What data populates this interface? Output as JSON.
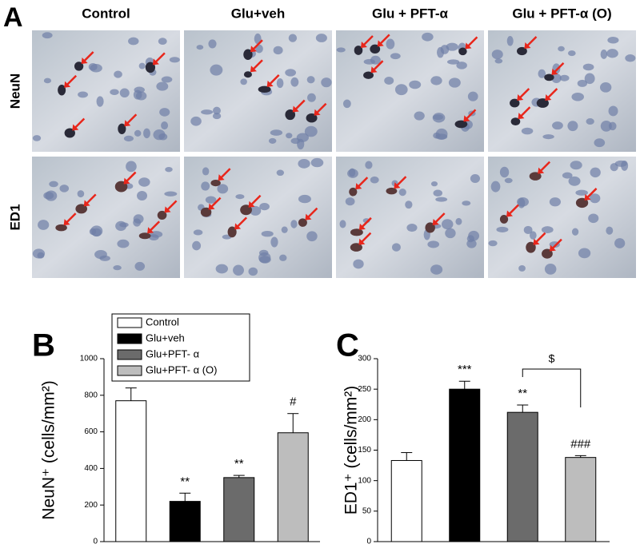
{
  "figure": {
    "panel_labels": [
      "A",
      "B",
      "C"
    ],
    "columns": [
      "Control",
      "Glu+veh",
      "Glu + PFT-α",
      "Glu + PFT-α (O)"
    ],
    "rows": [
      "NeuN",
      "ED1"
    ]
  },
  "chart_data": [
    {
      "type": "bar",
      "ylabel": "NeuN⁺ (cells/mm²)",
      "ylim": [
        0,
        1000
      ],
      "yticks": [
        0,
        200,
        400,
        600,
        800,
        1000
      ],
      "series": [
        {
          "name": "Control",
          "color": "#ffffff",
          "values": [
            770
          ],
          "errors": [
            70
          ]
        },
        {
          "name": "Glu+veh",
          "color": "#000000",
          "values": [
            220
          ],
          "errors": [
            45
          ],
          "labels": [
            "**"
          ]
        },
        {
          "name": "Glu+PFT- α",
          "color": "#6b6b6b",
          "values": [
            350
          ],
          "errors": [
            12
          ],
          "labels": [
            "**"
          ]
        },
        {
          "name": "Glu+PFT- α (O)",
          "color": "#bdbdbd",
          "values": [
            595
          ],
          "errors": [
            105
          ],
          "labels": [
            "#"
          ]
        }
      ]
    },
    {
      "type": "bar",
      "ylabel": "ED1⁺ (cells/mm²)",
      "ylim": [
        0,
        300
      ],
      "yticks": [
        0,
        50,
        100,
        150,
        200,
        250,
        300
      ],
      "bracket_label": "$",
      "series": [
        {
          "color": "#ffffff",
          "values": [
            133
          ],
          "errors": [
            13
          ]
        },
        {
          "color": "#000000",
          "values": [
            250
          ],
          "errors": [
            13
          ],
          "labels": [
            "***"
          ]
        },
        {
          "color": "#6b6b6b",
          "values": [
            212
          ],
          "errors": [
            12
          ],
          "labels": [
            "**"
          ]
        },
        {
          "color": "#bdbdbd",
          "values": [
            138
          ],
          "errors": [
            3
          ],
          "labels": [
            "###"
          ]
        }
      ]
    }
  ]
}
